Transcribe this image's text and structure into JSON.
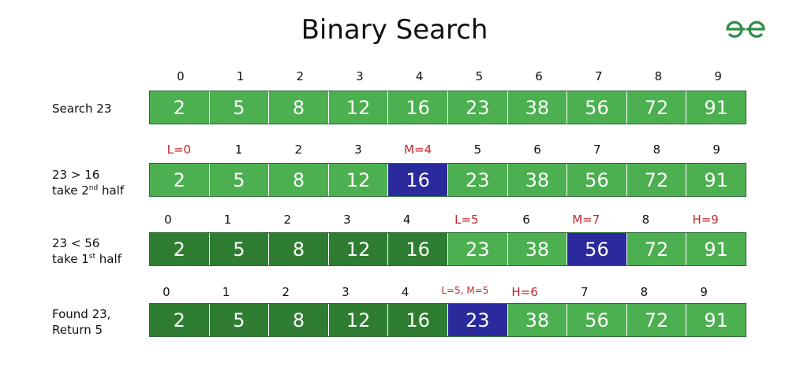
{
  "title": "Binary Search",
  "logo_icon": "geeksforgeeks-logo",
  "colors": {
    "active": "#4caf50",
    "inactive": "#2e7d32",
    "mid": "#2a2a9c",
    "pointer": "#c0262d"
  },
  "rows": [
    {
      "label": [
        "Search 23"
      ],
      "indices": [
        "0",
        "1",
        "2",
        "3",
        "4",
        "5",
        "6",
        "7",
        "8",
        "9"
      ],
      "cells": [
        {
          "v": "2",
          "s": "active"
        },
        {
          "v": "5",
          "s": "active"
        },
        {
          "v": "8",
          "s": "active"
        },
        {
          "v": "12",
          "s": "active"
        },
        {
          "v": "16",
          "s": "active"
        },
        {
          "v": "23",
          "s": "active"
        },
        {
          "v": "38",
          "s": "active"
        },
        {
          "v": "56",
          "s": "active"
        },
        {
          "v": "72",
          "s": "active"
        },
        {
          "v": "91",
          "s": "active"
        }
      ]
    },
    {
      "label": [
        "23 > 16",
        "take 2",
        "nd",
        " half"
      ],
      "indices": [
        "L=0",
        "1",
        "2",
        "3",
        "M=4",
        "5",
        "6",
        "7",
        "8",
        "9"
      ],
      "red": [
        0,
        4
      ],
      "cells": [
        {
          "v": "2",
          "s": "active"
        },
        {
          "v": "5",
          "s": "active"
        },
        {
          "v": "8",
          "s": "active"
        },
        {
          "v": "12",
          "s": "active"
        },
        {
          "v": "16",
          "s": "mid"
        },
        {
          "v": "23",
          "s": "active"
        },
        {
          "v": "38",
          "s": "active"
        },
        {
          "v": "56",
          "s": "active"
        },
        {
          "v": "72",
          "s": "active"
        },
        {
          "v": "91",
          "s": "active"
        }
      ]
    },
    {
      "label": [
        "23 < 56",
        "take 1",
        "st",
        " half"
      ],
      "indices": [
        "0",
        "1",
        "2",
        "3",
        "4",
        "L=5",
        "6",
        "M=7",
        "8",
        "H=9"
      ],
      "red": [
        5,
        7,
        9
      ],
      "cells": [
        {
          "v": "2",
          "s": "inactive"
        },
        {
          "v": "5",
          "s": "inactive"
        },
        {
          "v": "8",
          "s": "inactive"
        },
        {
          "v": "12",
          "s": "inactive"
        },
        {
          "v": "16",
          "s": "inactive"
        },
        {
          "v": "23",
          "s": "active"
        },
        {
          "v": "38",
          "s": "active"
        },
        {
          "v": "56",
          "s": "mid"
        },
        {
          "v": "72",
          "s": "active"
        },
        {
          "v": "91",
          "s": "active"
        }
      ]
    },
    {
      "label": [
        "Found 23,",
        "Return 5"
      ],
      "indices": [
        "0",
        "1",
        "2",
        "3",
        "4",
        "L=5, M=5",
        "H=6",
        "7",
        "8",
        "9"
      ],
      "red": [
        5,
        6
      ],
      "cells": [
        {
          "v": "2",
          "s": "inactive"
        },
        {
          "v": "5",
          "s": "inactive"
        },
        {
          "v": "8",
          "s": "inactive"
        },
        {
          "v": "12",
          "s": "inactive"
        },
        {
          "v": "16",
          "s": "inactive"
        },
        {
          "v": "23",
          "s": "mid"
        },
        {
          "v": "38",
          "s": "active"
        },
        {
          "v": "56",
          "s": "active"
        },
        {
          "v": "72",
          "s": "active"
        },
        {
          "v": "91",
          "s": "active"
        }
      ]
    }
  ]
}
